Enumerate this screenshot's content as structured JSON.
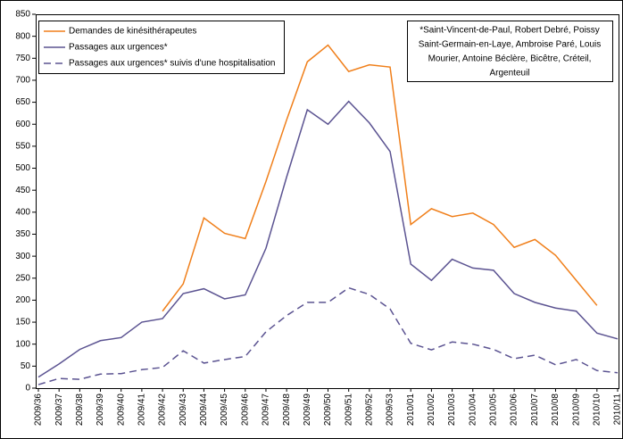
{
  "chart_data": {
    "type": "line",
    "categories": [
      "2009/36",
      "2009/37",
      "2009/38",
      "2009/39",
      "2009/40",
      "2009/41",
      "2009/42",
      "2009/43",
      "2009/44",
      "2009/45",
      "2009/46",
      "2009/47",
      "2009/48",
      "2009/49",
      "2009/50",
      "2009/51",
      "2009/52",
      "2009/53",
      "2010/01",
      "2010/02",
      "2010/03",
      "2010/04",
      "2010/05",
      "2010/06",
      "2010/07",
      "2010/08",
      "2010/09",
      "2010/10",
      "2010/11"
    ],
    "series": [
      {
        "name": "Demandes de kinésithérapeutes",
        "color": "#f07f1a",
        "dash": false,
        "values": [
          null,
          null,
          null,
          null,
          null,
          null,
          175,
          237,
          387,
          352,
          340,
          470,
          610,
          742,
          780,
          720,
          735,
          730,
          372,
          408,
          390,
          398,
          372,
          320,
          338,
          302,
          245,
          188,
          null
        ]
      },
      {
        "name": "Passages aux urgences*",
        "color": "#5b5391",
        "dash": false,
        "values": [
          25,
          55,
          88,
          108,
          115,
          150,
          158,
          215,
          226,
          203,
          212,
          318,
          480,
          633,
          600,
          652,
          603,
          538,
          282,
          245,
          293,
          273,
          268,
          215,
          195,
          182,
          175,
          125,
          112
        ]
      },
      {
        "name": "Passages aux urgences* suivis d'une hospitalisation",
        "color": "#5b5391",
        "dash": true,
        "values": [
          8,
          22,
          20,
          32,
          33,
          42,
          47,
          85,
          57,
          65,
          72,
          128,
          165,
          195,
          195,
          228,
          213,
          180,
          102,
          87,
          105,
          100,
          88,
          67,
          75,
          53,
          65,
          40,
          35
        ]
      }
    ],
    "annotation": [
      "*Saint-Vincent-de-Paul, Robert Debré, Poissy",
      "Saint-Germain-en-Laye, Ambroise Paré, Louis",
      "Mourier, Antoine Béclère, Bicêtre, Créteil,",
      "Argenteuil"
    ],
    "ylim": [
      0,
      850
    ],
    "yticks": [
      0,
      50,
      100,
      150,
      200,
      250,
      300,
      350,
      400,
      450,
      500,
      550,
      600,
      650,
      700,
      750,
      800,
      850
    ],
    "grid": false,
    "legend": "top-left"
  }
}
